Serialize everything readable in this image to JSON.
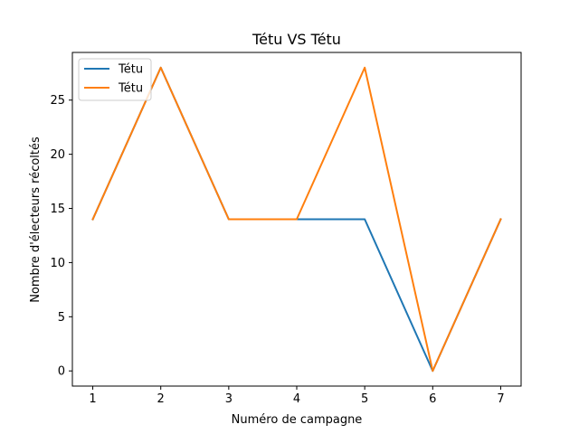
{
  "chart_data": {
    "type": "line",
    "title": "Tétu VS Tétu",
    "xlabel": "Numéro de campagne",
    "ylabel": "Nombre d'électeurs récoltés",
    "x": [
      1,
      2,
      3,
      4,
      5,
      6,
      7
    ],
    "xlim": [
      0.7,
      7.3
    ],
    "ylim": [
      -1.4,
      29.4
    ],
    "xticks": [
      1,
      2,
      3,
      4,
      5,
      6,
      7
    ],
    "yticks": [
      0,
      5,
      10,
      15,
      20,
      25
    ],
    "grid": false,
    "legend_position": "upper left",
    "series": [
      {
        "name": "Tétu",
        "color": "#1f77b4",
        "values": [
          14,
          28,
          14,
          14,
          14,
          0,
          14
        ]
      },
      {
        "name": "Tétu",
        "color": "#ff7f0e",
        "values": [
          14,
          28,
          14,
          14,
          28,
          0,
          14
        ]
      }
    ]
  }
}
